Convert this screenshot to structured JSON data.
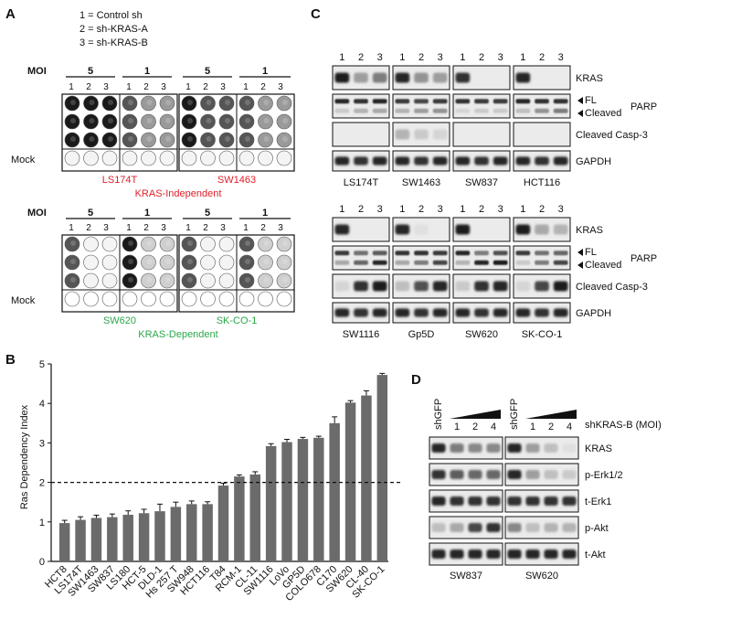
{
  "panel_a": {
    "letter": "A",
    "legend": [
      "1 = Control sh",
      "2 = sh-KRAS-A",
      "3 = sh-KRAS-B"
    ],
    "moi_label": "MOI",
    "moi_values": [
      "5",
      "1",
      "5",
      "1"
    ],
    "lane_labels": [
      "1",
      "2",
      "3"
    ],
    "mock_label": "Mock",
    "top": {
      "cell_lines": [
        "LS174T",
        "SW1463"
      ],
      "group": "KRAS-Independent",
      "group_color": "#e0202a"
    },
    "bottom": {
      "cell_lines": [
        "SW620",
        "SK-CO-1"
      ],
      "group": "KRAS-Dependent",
      "group_color": "#2aa84a"
    }
  },
  "panel_b": {
    "letter": "B",
    "chart_data": {
      "type": "bar",
      "ylabel": "Ras Dependency Index",
      "ylim": [
        0,
        5
      ],
      "yticks": [
        "0",
        "1",
        "2",
        "3",
        "4",
        "5"
      ],
      "threshold": 2,
      "categories": [
        "HCT8",
        "LS174T",
        "SW1463",
        "SW837",
        "LS180",
        "HCT-5",
        "DLD-1",
        "Hs 257 T",
        "SW948",
        "HCT116",
        "T84",
        "RCM-1",
        "CL-11",
        "SW1116",
        "LoVo",
        "GP5D",
        "COLO678",
        "C170",
        "SW620",
        "CL-40",
        "SK-CO-1"
      ],
      "values": [
        0.97,
        1.05,
        1.1,
        1.12,
        1.18,
        1.22,
        1.27,
        1.38,
        1.45,
        1.45,
        1.92,
        2.15,
        2.2,
        2.92,
        3.02,
        3.1,
        3.13,
        3.5,
        4.02,
        4.2,
        4.72
      ],
      "errors": [
        0.07,
        0.08,
        0.07,
        0.08,
        0.1,
        0.1,
        0.18,
        0.12,
        0.08,
        0.06,
        0.06,
        0.04,
        0.07,
        0.06,
        0.07,
        0.04,
        0.04,
        0.16,
        0.05,
        0.12,
        0.04
      ],
      "label_colors": [
        "#e0202a",
        "#e0202a",
        "#e0202a",
        "#e0202a",
        "#e0202a",
        "#e0202a",
        "#e0202a",
        "#e0202a",
        "#e0202a",
        "#e0202a",
        "#e0202a",
        "#2aa84a",
        "#2aa84a",
        "#2aa84a",
        "#2aa84a",
        "#2aa84a",
        "#2aa84a",
        "#2aa84a",
        "#2aa84a",
        "#2aa84a",
        "#2aa84a"
      ],
      "bar_color": "#6b6b6b"
    }
  },
  "panel_c": {
    "letter": "C",
    "lane_labels": [
      "1",
      "2",
      "3"
    ],
    "row_labels": [
      "KRAS",
      "FL",
      "Cleaved",
      "PARP",
      "Cleaved Casp-3",
      "GAPDH"
    ],
    "top": {
      "cell_lines": [
        "LS174T",
        "SW1463",
        "SW837",
        "HCT116"
      ],
      "color": "#e0202a"
    },
    "bottom": {
      "cell_lines": [
        "SW1116",
        "Gp5D",
        "SW620",
        "SK-CO-1"
      ],
      "color": "#2aa84a"
    }
  },
  "panel_d": {
    "letter": "D",
    "lane_labels": [
      "shGFP",
      "1",
      "2",
      "4",
      "shGFP",
      "1",
      "2",
      "4"
    ],
    "treatment_label": "shKRAS-B (MOI)",
    "row_labels": [
      "KRAS",
      "p-Erk1/2",
      "t-Erk1",
      "p-Akt",
      "t-Akt"
    ],
    "cell_lines": [
      {
        "name": "SW837",
        "color": "#e0202a"
      },
      {
        "name": "SW620",
        "color": "#2aa84a"
      }
    ]
  }
}
